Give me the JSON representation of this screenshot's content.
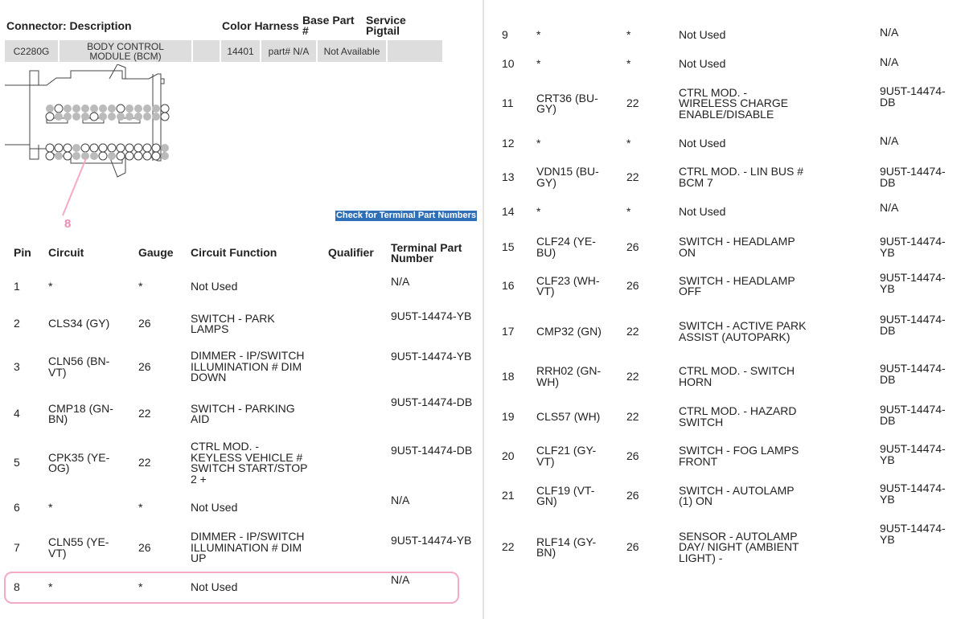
{
  "connector": {
    "headers": {
      "connector": "Connector: Description",
      "color": "Color Harness",
      "base": "Base Part #",
      "service": "Service Pigtail"
    },
    "row": {
      "id": "C2280G",
      "description": "BODY CONTROL MODULE (BCM)",
      "color": "",
      "harness": "14401",
      "base": "part# N/A",
      "service": "Not Available"
    }
  },
  "diagram": {
    "callout": "8"
  },
  "check_button": "Check for Terminal Part Numbers",
  "highlight_color": "#f4a9c8",
  "table": {
    "headers": {
      "pin": "Pin",
      "circuit": "Circuit",
      "gauge": "Gauge",
      "function": "Circuit Function",
      "qualifier": "Qualifier",
      "terminal": "Terminal Part Number"
    },
    "rows": [
      {
        "pin": "1",
        "circuit": "*",
        "gauge": "*",
        "function": "Not Used",
        "qualifier": "",
        "terminal": "N/A"
      },
      {
        "pin": "2",
        "circuit": "CLS34 (GY)",
        "gauge": "26",
        "function": "SWITCH - PARK LAMPS",
        "qualifier": "",
        "terminal": "9U5T-14474-YB"
      },
      {
        "pin": "3",
        "circuit": "CLN56 (BN-VT)",
        "gauge": "26",
        "function": "DIMMER - IP/SWITCH ILLUMINATION # DIM DOWN",
        "qualifier": "",
        "terminal": "9U5T-14474-YB"
      },
      {
        "pin": "4",
        "circuit": "CMP18 (GN-BN)",
        "gauge": "22",
        "function": "SWITCH - PARKING AID",
        "qualifier": "",
        "terminal": "9U5T-14474-DB"
      },
      {
        "pin": "5",
        "circuit": "CPK35 (YE-OG)",
        "gauge": "22",
        "function": "CTRL MOD. - KEYLESS VEHICLE # SWITCH START/STOP 2 +",
        "qualifier": "",
        "terminal": "9U5T-14474-DB"
      },
      {
        "pin": "6",
        "circuit": "*",
        "gauge": "*",
        "function": "Not Used",
        "qualifier": "",
        "terminal": "N/A"
      },
      {
        "pin": "7",
        "circuit": "CLN55 (YE-VT)",
        "gauge": "26",
        "function": "DIMMER - IP/SWITCH ILLUMINATION # DIM UP",
        "qualifier": "",
        "terminal": "9U5T-14474-YB"
      },
      {
        "pin": "8",
        "circuit": "*",
        "gauge": "*",
        "function": "Not Used",
        "qualifier": "",
        "terminal": "N/A"
      },
      {
        "pin": "9",
        "circuit": "*",
        "gauge": "*",
        "function": "Not Used",
        "qualifier": "",
        "terminal": "N/A"
      },
      {
        "pin": "10",
        "circuit": "*",
        "gauge": "*",
        "function": "Not Used",
        "qualifier": "",
        "terminal": "N/A"
      },
      {
        "pin": "11",
        "circuit": "CRT36 (BU-GY)",
        "gauge": "22",
        "function": "CTRL MOD. - WIRELESS CHARGE ENABLE/DISABLE",
        "qualifier": "",
        "terminal": "9U5T-14474-DB"
      },
      {
        "pin": "12",
        "circuit": "*",
        "gauge": "*",
        "function": "Not Used",
        "qualifier": "",
        "terminal": "N/A"
      },
      {
        "pin": "13",
        "circuit": "VDN15 (BU-GY)",
        "gauge": "22",
        "function": "CTRL MOD. - LIN BUS # BCM 7",
        "qualifier": "",
        "terminal": "9U5T-14474-DB"
      },
      {
        "pin": "14",
        "circuit": "*",
        "gauge": "*",
        "function": "Not Used",
        "qualifier": "",
        "terminal": "N/A"
      },
      {
        "pin": "15",
        "circuit": "CLF24 (YE-BU)",
        "gauge": "26",
        "function": "SWITCH - HEADLAMP ON",
        "qualifier": "",
        "terminal": "9U5T-14474-YB"
      },
      {
        "pin": "16",
        "circuit": "CLF23 (WH-VT)",
        "gauge": "26",
        "function": "SWITCH - HEADLAMP OFF",
        "qualifier": "",
        "terminal": "9U5T-14474-YB"
      },
      {
        "pin": "17",
        "circuit": "CMP32 (GN)",
        "gauge": "22",
        "function": "SWITCH - ACTIVE PARK ASSIST (AUTOPARK)",
        "qualifier": "",
        "terminal": "9U5T-14474-DB"
      },
      {
        "pin": "18",
        "circuit": "RRH02 (GN-WH)",
        "gauge": "22",
        "function": "CTRL MOD. - SWITCH HORN",
        "qualifier": "",
        "terminal": "9U5T-14474-DB"
      },
      {
        "pin": "19",
        "circuit": "CLS57 (WH)",
        "gauge": "22",
        "function": "CTRL MOD. - HAZARD SWITCH",
        "qualifier": "",
        "terminal": "9U5T-14474-DB"
      },
      {
        "pin": "20",
        "circuit": "CLF21 (GY-VT)",
        "gauge": "26",
        "function": "SWITCH - FOG LAMPS FRONT",
        "qualifier": "",
        "terminal": "9U5T-14474-YB"
      },
      {
        "pin": "21",
        "circuit": "CLF19 (VT-GN)",
        "gauge": "26",
        "function": "SWITCH - AUTOLAMP (1) ON",
        "qualifier": "",
        "terminal": "9U5T-14474-YB"
      },
      {
        "pin": "22",
        "circuit": "RLF14 (GY-BN)",
        "gauge": "26",
        "function": "SENSOR - AUTOLAMP DAY/ NIGHT (AMBIENT LIGHT) -",
        "qualifier": "",
        "terminal": "9U5T-14474-YB"
      }
    ]
  }
}
